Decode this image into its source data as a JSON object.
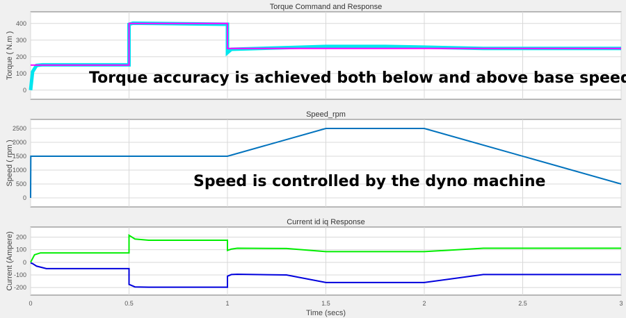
{
  "chart_data": [
    {
      "type": "line",
      "title": "Torque Command and Response",
      "ylabel": "Torque ( N.m )",
      "xlim": [
        0,
        3
      ],
      "ylim": [
        -55,
        470
      ],
      "yticks": [
        0,
        100,
        200,
        300,
        400
      ],
      "grid": true,
      "series": [
        {
          "color": "#00e5ee",
          "x": [
            0,
            0.01,
            0.03,
            0.06,
            0.5,
            0.5,
            0.52,
            1,
            1,
            1.02,
            1.3,
            1.5,
            1.8,
            2,
            2.3,
            3
          ],
          "y": [
            0,
            110,
            148,
            152,
            152,
            395,
            402,
            395,
            225,
            245,
            255,
            262,
            262,
            258,
            250,
            250
          ]
        },
        {
          "color": "#ff00ff",
          "x": [
            0,
            0.5,
            0.5,
            1,
            1,
            3
          ],
          "y": [
            150,
            150,
            400,
            400,
            250,
            250
          ]
        }
      ],
      "annotation": "Torque accuracy is achieved both below and above base speed"
    },
    {
      "type": "line",
      "title": "Speed_rpm",
      "ylabel": "Speed ( rpm )",
      "xlim": [
        0,
        3
      ],
      "ylim": [
        -325,
        2825
      ],
      "yticks": [
        0,
        500,
        1000,
        1500,
        2000,
        2500
      ],
      "grid": true,
      "series": [
        {
          "color": "#0072bd",
          "x": [
            0,
            0.001,
            1,
            1.5,
            2,
            3
          ],
          "y": [
            0,
            1500,
            1500,
            2500,
            2500,
            500
          ]
        }
      ],
      "annotation": "Speed is controlled by the dyno machine"
    },
    {
      "type": "line",
      "title": "Current id iq Response",
      "ylabel": "Current (Ampere)",
      "xlabel": "Time (secs)",
      "xlim": [
        0,
        3
      ],
      "ylim": [
        -260,
        280
      ],
      "yticks": [
        -200,
        -100,
        0,
        100,
        200
      ],
      "grid": true,
      "series": [
        {
          "color": "#00ee00",
          "x": [
            0,
            0.02,
            0.05,
            0.5,
            0.5,
            0.53,
            0.6,
            1,
            1,
            1.02,
            1.05,
            1.3,
            1.5,
            2,
            2.3,
            3
          ],
          "y": [
            0,
            60,
            75,
            75,
            215,
            185,
            175,
            175,
            95,
            105,
            112,
            110,
            85,
            85,
            112,
            112
          ]
        },
        {
          "color": "#0000dd",
          "x": [
            0,
            0.01,
            0.03,
            0.08,
            0.5,
            0.5,
            0.53,
            0.6,
            1,
            1,
            1.02,
            1.05,
            1.3,
            1.5,
            2,
            2.3,
            3
          ],
          "y": [
            -5,
            -10,
            -30,
            -50,
            -50,
            -175,
            -195,
            -197,
            -197,
            -110,
            -97,
            -95,
            -100,
            -160,
            -160,
            -97,
            -97
          ]
        }
      ]
    }
  ],
  "xticks": [
    0,
    0.5,
    1,
    1.5,
    2,
    2.5,
    3
  ]
}
